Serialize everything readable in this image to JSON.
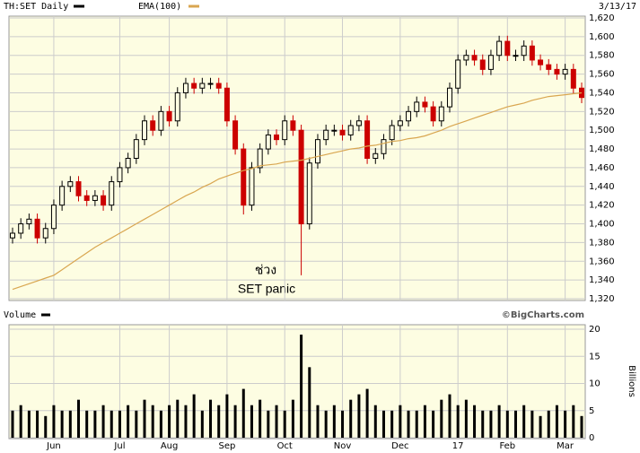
{
  "chart_data": [
    {
      "type": "candlestick",
      "title": "TH:SET Daily",
      "date_label": "3/13/17",
      "categories": [
        null,
        null,
        null,
        null,
        null,
        "Jun",
        null,
        null,
        null,
        null,
        null,
        null,
        null,
        "Jul",
        null,
        null,
        null,
        null,
        null,
        "Aug",
        null,
        null,
        null,
        null,
        null,
        null,
        "Sep",
        null,
        null,
        null,
        null,
        null,
        null,
        "Oct",
        null,
        null,
        null,
        null,
        null,
        null,
        "Nov",
        null,
        null,
        null,
        null,
        null,
        null,
        "Dec",
        null,
        null,
        null,
        null,
        null,
        null,
        "17",
        null,
        null,
        null,
        null,
        null,
        "Feb",
        null,
        null,
        null,
        null,
        null,
        null,
        "Mar",
        null,
        null
      ],
      "open": [
        1385,
        1390,
        1400,
        1405,
        1385,
        1395,
        1420,
        1440,
        1445,
        1430,
        1425,
        1430,
        1420,
        1445,
        1460,
        1470,
        1490,
        1510,
        1500,
        1520,
        1510,
        1540,
        1550,
        1545,
        1550,
        1550,
        1545,
        1510,
        1480,
        1420,
        1460,
        1480,
        1495,
        1490,
        1510,
        1500,
        1400,
        1465,
        1490,
        1500,
        1500,
        1495,
        1505,
        1510,
        1470,
        1475,
        1490,
        1505,
        1510,
        1520,
        1530,
        1525,
        1510,
        1525,
        1545,
        1575,
        1580,
        1575,
        1565,
        1580,
        1595,
        1580,
        1580,
        1590,
        1575,
        1570,
        1565,
        1560,
        1565,
        1545
      ],
      "high": [
        1396,
        1406,
        1411,
        1411,
        1401,
        1426,
        1446,
        1451,
        1451,
        1436,
        1436,
        1436,
        1451,
        1466,
        1476,
        1496,
        1516,
        1516,
        1526,
        1526,
        1546,
        1556,
        1556,
        1556,
        1556,
        1556,
        1551,
        1516,
        1486,
        1466,
        1486,
        1501,
        1501,
        1516,
        1516,
        1506,
        1471,
        1496,
        1506,
        1506,
        1506,
        1511,
        1516,
        1516,
        1481,
        1496,
        1511,
        1516,
        1526,
        1536,
        1536,
        1531,
        1531,
        1551,
        1581,
        1586,
        1586,
        1581,
        1586,
        1601,
        1601,
        1586,
        1596,
        1596,
        1581,
        1576,
        1571,
        1571,
        1571,
        1551
      ],
      "low": [
        1379,
        1384,
        1394,
        1379,
        1379,
        1389,
        1414,
        1434,
        1424,
        1419,
        1419,
        1414,
        1414,
        1439,
        1454,
        1464,
        1484,
        1494,
        1494,
        1504,
        1504,
        1534,
        1539,
        1539,
        1544,
        1539,
        1504,
        1474,
        1410,
        1414,
        1454,
        1474,
        1484,
        1484,
        1494,
        1345,
        1394,
        1459,
        1484,
        1494,
        1489,
        1489,
        1499,
        1464,
        1464,
        1469,
        1484,
        1499,
        1504,
        1514,
        1519,
        1504,
        1504,
        1519,
        1539,
        1569,
        1569,
        1559,
        1559,
        1574,
        1574,
        1574,
        1574,
        1569,
        1564,
        1559,
        1554,
        1554,
        1539,
        1529
      ],
      "close": [
        1390,
        1400,
        1405,
        1385,
        1395,
        1420,
        1440,
        1445,
        1430,
        1425,
        1430,
        1420,
        1445,
        1460,
        1470,
        1490,
        1510,
        1500,
        1520,
        1510,
        1540,
        1550,
        1545,
        1550,
        1550,
        1545,
        1510,
        1480,
        1420,
        1460,
        1480,
        1495,
        1490,
        1510,
        1500,
        1400,
        1465,
        1490,
        1500,
        1500,
        1495,
        1505,
        1510,
        1470,
        1475,
        1490,
        1505,
        1510,
        1520,
        1530,
        1525,
        1510,
        1525,
        1545,
        1575,
        1580,
        1575,
        1565,
        1580,
        1595,
        1580,
        1580,
        1590,
        1575,
        1570,
        1565,
        1560,
        1565,
        1545,
        1535
      ],
      "up_color": "#000000",
      "down_color": "#cc0000",
      "series": [
        {
          "name": "EMA(100)",
          "color": "#d9a650",
          "values": [
            1330,
            1333,
            1336,
            1339,
            1342,
            1345,
            1351,
            1357,
            1363,
            1369,
            1375,
            1380,
            1385,
            1390,
            1395,
            1400,
            1405,
            1410,
            1415,
            1420,
            1425,
            1430,
            1434,
            1439,
            1443,
            1448,
            1451,
            1454,
            1457,
            1459,
            1462,
            1463,
            1464,
            1466,
            1467,
            1468,
            1470,
            1472,
            1474,
            1476,
            1478,
            1480,
            1481,
            1483,
            1484,
            1486,
            1488,
            1489,
            1491,
            1492,
            1494,
            1497,
            1500,
            1504,
            1507,
            1510,
            1513,
            1516,
            1519,
            1522,
            1525,
            1527,
            1529,
            1532,
            1534,
            1536,
            1537,
            1538,
            1539,
            1540
          ]
        }
      ],
      "ylim": [
        1320,
        1620
      ],
      "yticks": [
        {
          "value": 1320,
          "label": "1,320"
        },
        {
          "value": 1340,
          "label": "1,340"
        },
        {
          "value": 1360,
          "label": "1,360"
        },
        {
          "value": 1380,
          "label": "1,380"
        },
        {
          "value": 1400,
          "label": "1,400"
        },
        {
          "value": 1420,
          "label": "1,420"
        },
        {
          "value": 1440,
          "label": "1,440"
        },
        {
          "value": 1460,
          "label": "1,460"
        },
        {
          "value": 1480,
          "label": "1,480"
        },
        {
          "value": 1500,
          "label": "1,500"
        },
        {
          "value": 1520,
          "label": "1,520"
        },
        {
          "value": 1540,
          "label": "1,540"
        },
        {
          "value": 1560,
          "label": "1,560"
        },
        {
          "value": 1580,
          "label": "1,580"
        },
        {
          "value": 1600,
          "label": "1,600"
        },
        {
          "value": 1620,
          "label": "1,620"
        }
      ],
      "annotations": [
        "ช่วง",
        "SET panic"
      ],
      "grid": true
    },
    {
      "type": "bar",
      "title": "Volume",
      "source": "©BigCharts.com",
      "y_label": "Billions",
      "color": "#000000",
      "values": [
        5,
        6,
        5,
        5,
        4,
        6,
        5,
        5,
        7,
        5,
        5,
        6,
        5,
        5,
        6,
        5,
        7,
        6,
        5,
        6,
        7,
        6,
        8,
        5,
        7,
        6,
        8,
        6,
        9,
        6,
        7,
        5,
        6,
        5,
        7,
        19,
        13,
        6,
        5,
        6,
        5,
        7,
        8,
        9,
        6,
        5,
        5,
        6,
        5,
        5,
        6,
        5,
        7,
        8,
        6,
        7,
        6,
        5,
        5,
        6,
        5,
        5,
        6,
        5,
        4,
        5,
        6,
        5,
        6,
        4
      ],
      "ylim": [
        0,
        20
      ],
      "yticks": [
        0,
        5,
        10,
        15,
        20
      ],
      "grid": true
    }
  ]
}
